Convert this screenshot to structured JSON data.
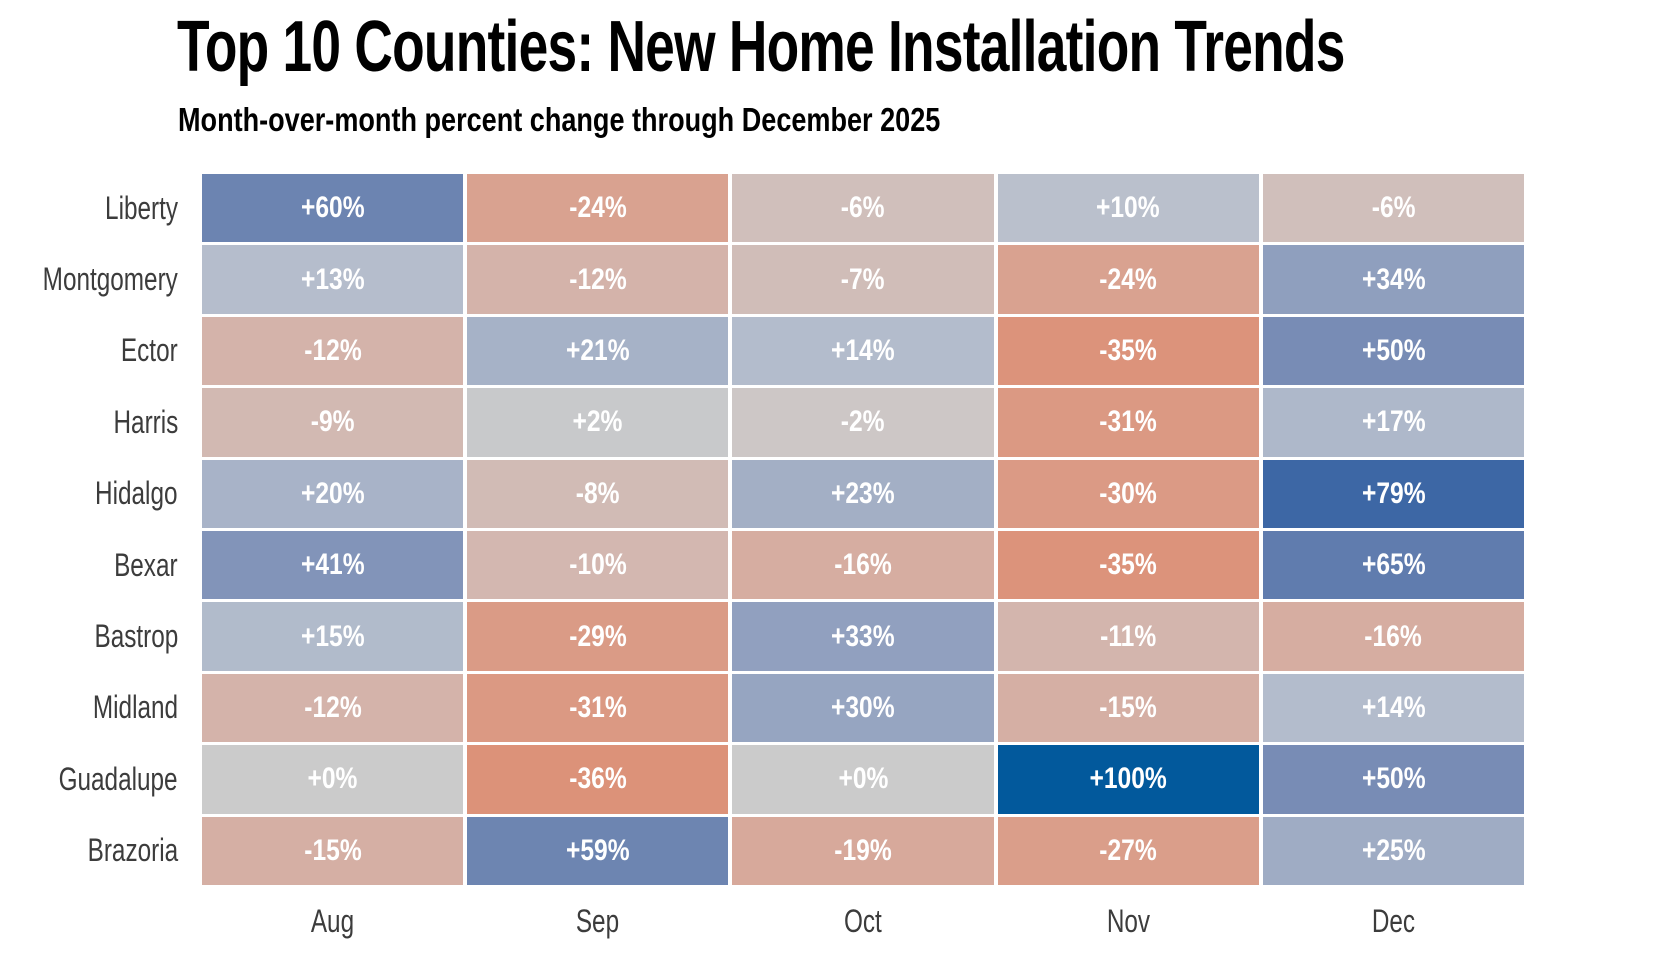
{
  "title": "Top 10 Counties: New Home Installation Trends",
  "subtitle": "Month-over-month percent change through December 2025",
  "colors": {
    "background": "#ffffff",
    "title_text": "#000000",
    "axis_label_text": "#3c3c3c",
    "cell_value_text": "#ffffff",
    "cell_gap": "#ffffff",
    "negative_extreme": "#DC9279",
    "neutral_mid": "#CBCBCB",
    "positive_extreme": "#02599C"
  },
  "chart_data": {
    "type": "heatmap",
    "title": "Top 10 Counties: New Home Installation Trends",
    "subtitle": "Month-over-month percent change through December 2025",
    "x_labels": [
      "Aug",
      "Sep",
      "Oct",
      "Nov",
      "Dec"
    ],
    "y_labels": [
      "Liberty",
      "Montgomery",
      "Ector",
      "Harris",
      "Hidalgo",
      "Bexar",
      "Bastrop",
      "Midland",
      "Guadalupe",
      "Brazoria"
    ],
    "values_percent": [
      [
        60,
        -24,
        -6,
        10,
        -6
      ],
      [
        13,
        -12,
        -7,
        -24,
        34
      ],
      [
        -12,
        21,
        14,
        -35,
        50
      ],
      [
        -9,
        2,
        -2,
        -31,
        17
      ],
      [
        20,
        -8,
        23,
        -30,
        79
      ],
      [
        41,
        -10,
        -16,
        -35,
        65
      ],
      [
        15,
        -29,
        33,
        -11,
        -16
      ],
      [
        -12,
        -31,
        30,
        -15,
        14
      ],
      [
        0,
        -36,
        0,
        100,
        50
      ],
      [
        -15,
        59,
        -19,
        -27,
        25
      ]
    ],
    "cell_label_format": "signed_percent",
    "value_range": [
      -36,
      100
    ],
    "legend": "none",
    "grid": "white gaps between cells",
    "colormap_stops": [
      {
        "value": -36,
        "color": "#DC9279"
      },
      {
        "value": -24,
        "color": "#D9A290"
      },
      {
        "value": -12,
        "color": "#D4B3AA"
      },
      {
        "value": 0,
        "color": "#CBCBCB"
      },
      {
        "value": 14,
        "color": "#B3BCCC"
      },
      {
        "value": 25,
        "color": "#9FACC4"
      },
      {
        "value": 41,
        "color": "#8294B9"
      },
      {
        "value": 60,
        "color": "#6C84B1"
      },
      {
        "value": 79,
        "color": "#3D67A5"
      },
      {
        "value": 100,
        "color": "#02599C"
      }
    ]
  }
}
